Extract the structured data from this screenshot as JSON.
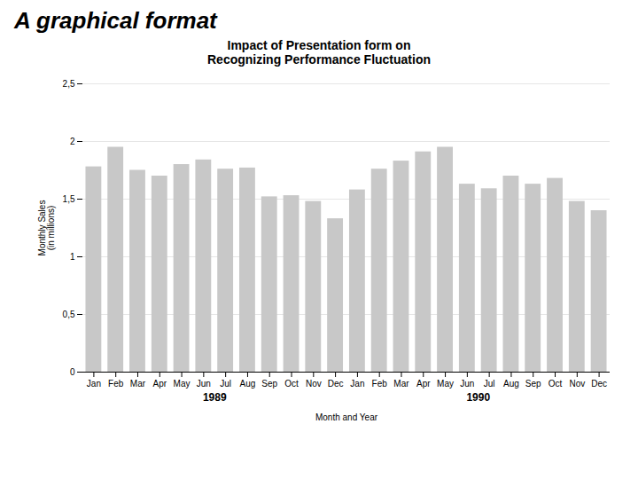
{
  "chart_data": {
    "type": "bar",
    "subtitle": "A graphical format",
    "title": "Impact of Presentation form on\nRecognizing Performance Fluctuation",
    "xlabel": "Month and Year",
    "ylabel": "Monthly Sales\n(in millions)",
    "categories": [
      "Jan",
      "Feb",
      "Mar",
      "Apr",
      "May",
      "Jun",
      "Jul",
      "Aug",
      "Sep",
      "Oct",
      "Nov",
      "Dec",
      "Jan",
      "Feb",
      "Mar",
      "Apr",
      "May",
      "Jun",
      "Jul",
      "Aug",
      "Sep",
      "Oct",
      "Nov",
      "Dec"
    ],
    "values": [
      1.78,
      1.95,
      1.75,
      1.7,
      1.8,
      1.84,
      1.76,
      1.77,
      1.52,
      1.53,
      1.48,
      1.33,
      1.58,
      1.76,
      1.83,
      1.91,
      1.95,
      1.63,
      1.59,
      1.7,
      1.63,
      1.68,
      1.48,
      1.4
    ],
    "color": "#c8c8c8",
    "ylim": [
      0,
      2.5
    ],
    "yticks": [
      0,
      {
        "value": 0.5,
        "label": "0,5"
      },
      1,
      {
        "value": 1.5,
        "label": "1,5"
      },
      2,
      {
        "value": 2.5,
        "label": "2,5"
      }
    ],
    "grid": true,
    "annotations": [
      {
        "text": "1989",
        "x": 5.5
      },
      {
        "text": "1990",
        "x": 17.5
      }
    ]
  }
}
